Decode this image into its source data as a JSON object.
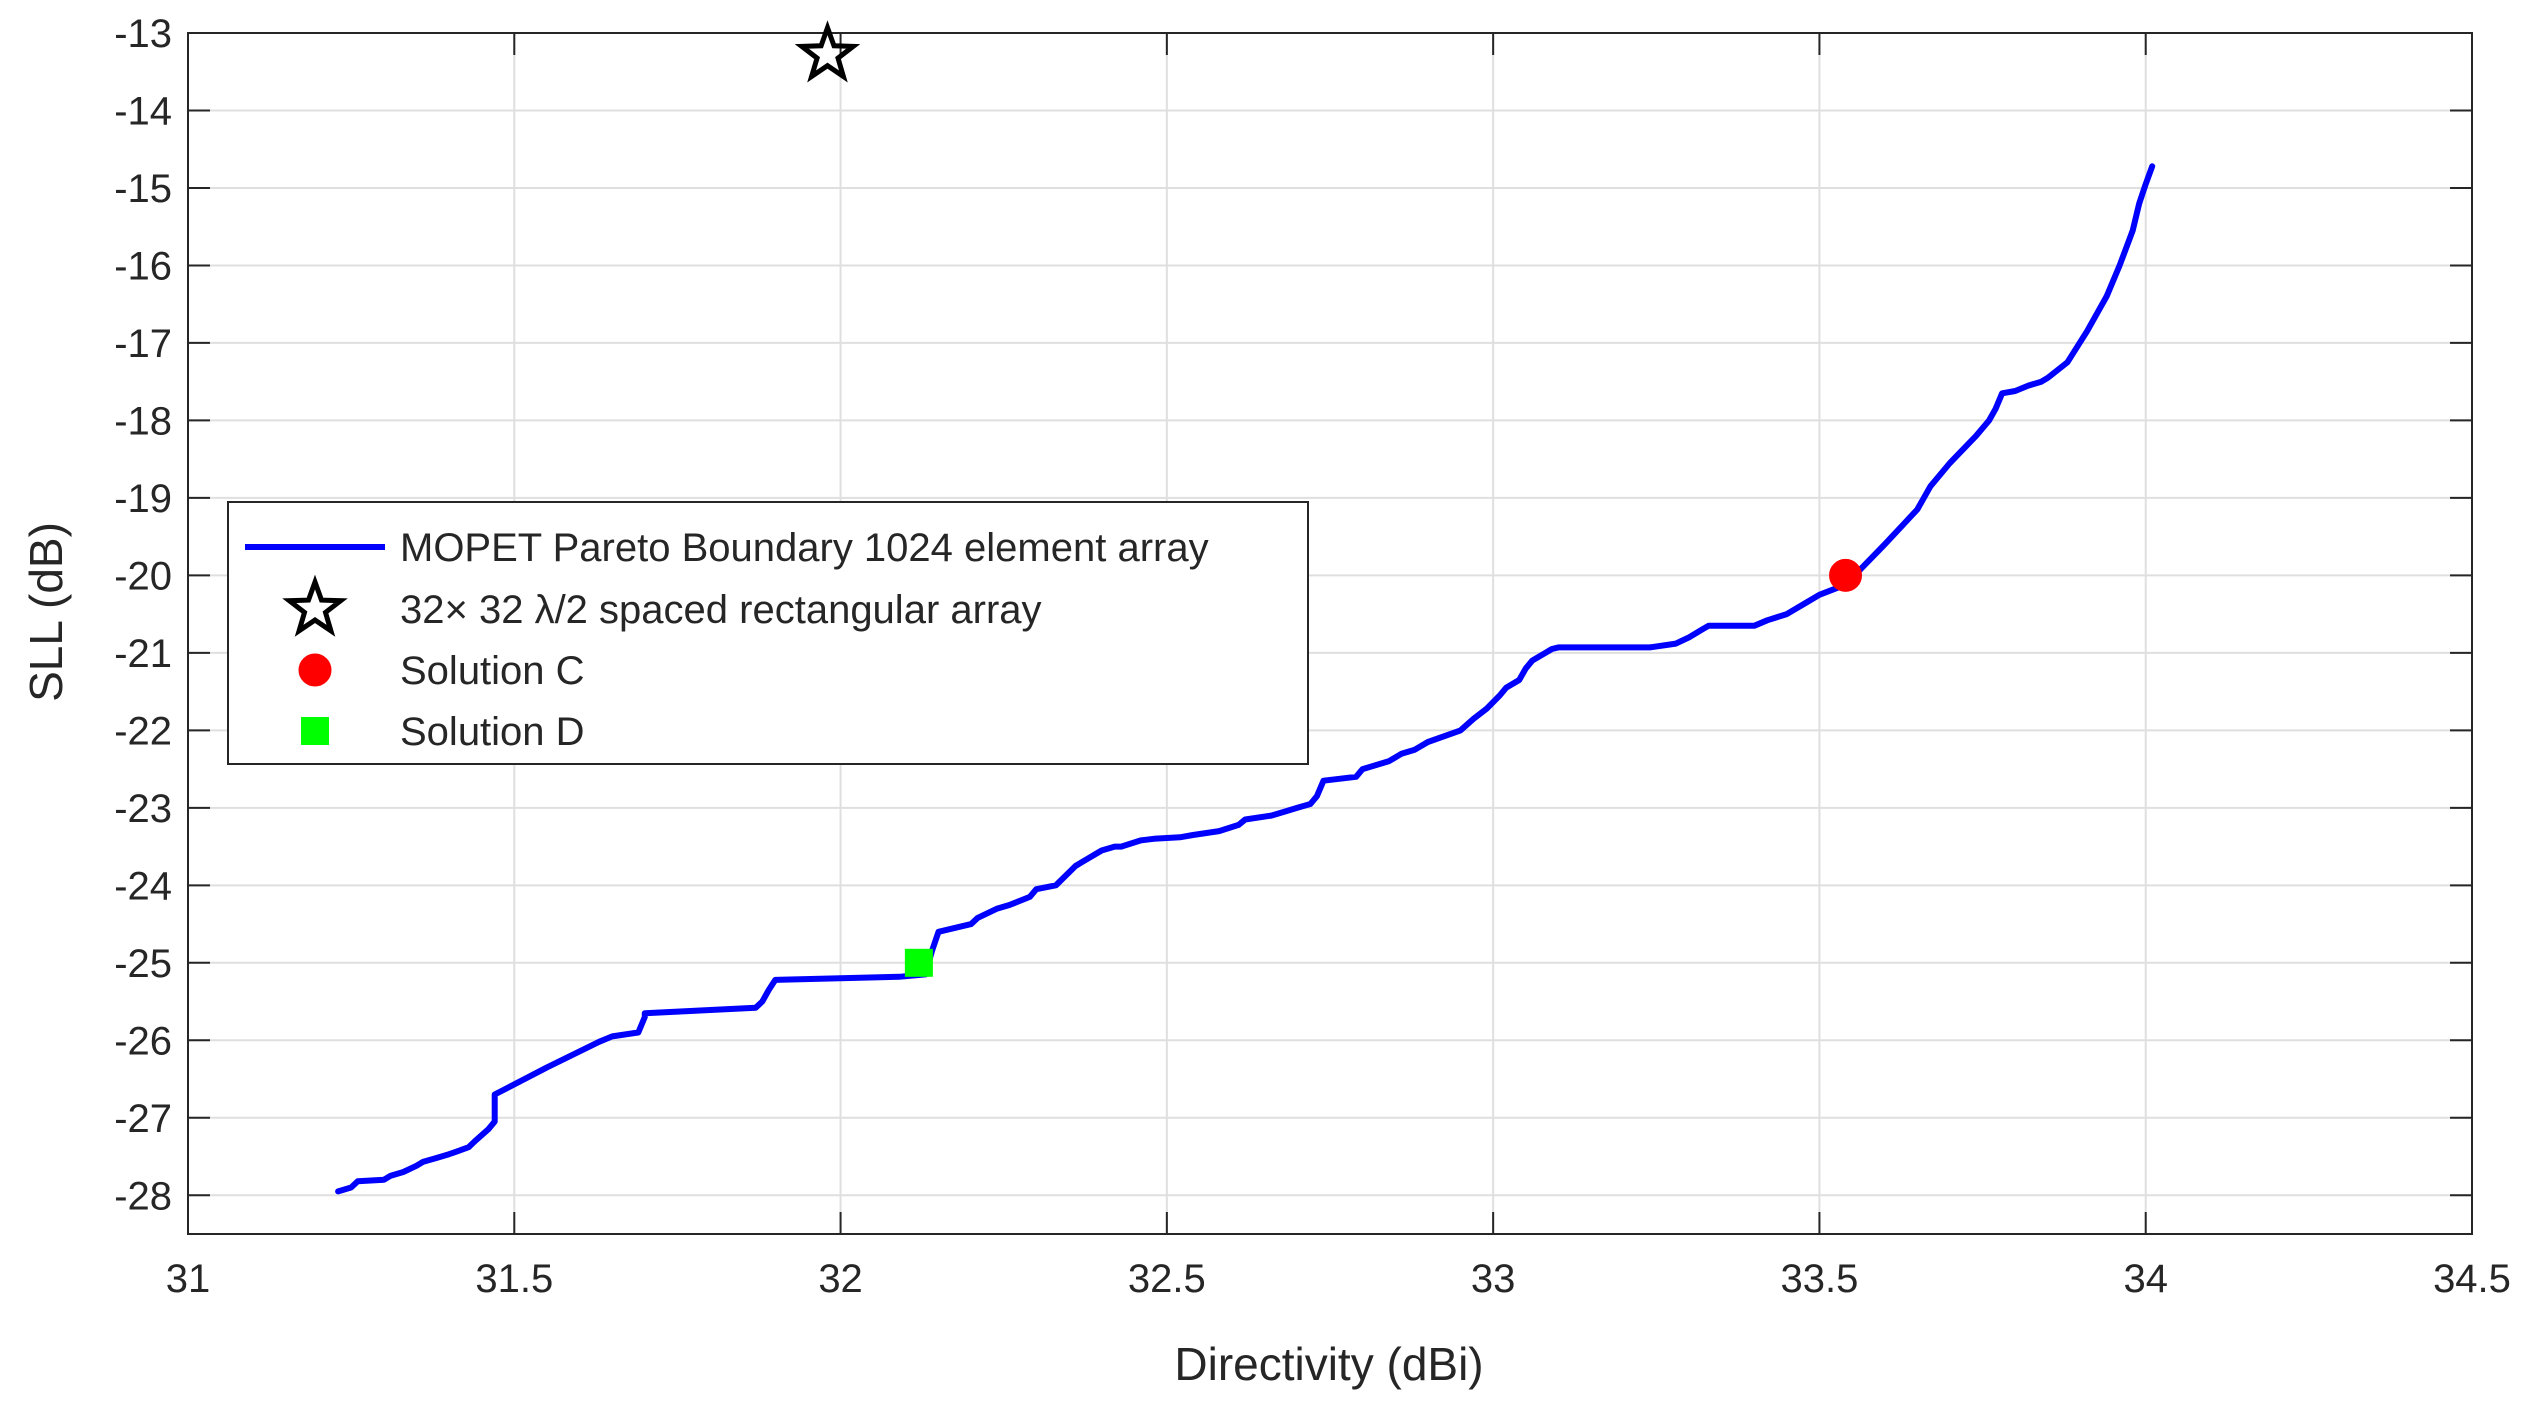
{
  "chart_data": {
    "type": "line",
    "title": "",
    "xlabel": "Directivity (dBi)",
    "ylabel": "SLL (dB)",
    "xlim": [
      31,
      34.5
    ],
    "ylim": [
      -28.5,
      -13
    ],
    "xticks": [
      31,
      31.5,
      32,
      32.5,
      33,
      33.5,
      34,
      34.5
    ],
    "xtick_labels": [
      "31",
      "31.5",
      "32",
      "32.5",
      "33",
      "33.5",
      "34",
      "34.5"
    ],
    "yticks": [
      -13,
      -14,
      -15,
      -16,
      -17,
      -18,
      -19,
      -20,
      -21,
      -22,
      -23,
      -24,
      -25,
      -26,
      -27,
      -28
    ],
    "ytick_labels": [
      "-13",
      "-14",
      "-15",
      "-16",
      "-17",
      "-18",
      "-19",
      "-20",
      "-21",
      "-22",
      "-23",
      "-24",
      "-25",
      "-26",
      "-27",
      "-28"
    ],
    "grid": true,
    "legend_position": "left-middle",
    "series": [
      {
        "name": "MOPET Pareto Boundary 1024 element array",
        "kind": "line",
        "color": "#0000ff",
        "x": [
          31.23,
          31.25,
          31.26,
          31.3,
          31.31,
          31.33,
          31.35,
          31.36,
          31.38,
          31.4,
          31.41,
          31.43,
          31.44,
          31.46,
          31.47,
          31.47,
          31.55,
          31.63,
          31.65,
          31.69,
          31.7,
          31.7,
          31.87,
          31.88,
          31.89,
          31.9,
          32.09,
          32.13,
          32.14,
          32.15,
          32.2,
          32.21,
          32.24,
          32.26,
          32.29,
          32.3,
          32.33,
          32.36,
          32.37,
          32.4,
          32.42,
          32.43,
          32.46,
          32.48,
          32.52,
          32.54,
          32.58,
          32.61,
          32.62,
          32.66,
          32.68,
          32.7,
          32.72,
          32.73,
          32.74,
          32.79,
          32.8,
          32.84,
          32.86,
          32.88,
          32.9,
          32.95,
          32.97,
          32.99,
          33.01,
          33.02,
          33.04,
          33.05,
          33.06,
          33.08,
          33.09,
          33.1,
          33.16,
          33.24,
          33.28,
          33.3,
          33.32,
          33.33,
          33.4,
          33.42,
          33.45,
          33.48,
          33.5,
          33.54,
          33.6,
          33.65,
          33.67,
          33.7,
          33.74,
          33.76,
          33.77,
          33.78,
          33.8,
          33.82,
          33.84,
          33.85,
          33.88,
          33.91,
          33.94,
          33.96,
          33.98,
          33.99,
          34.0,
          34.01
        ],
        "y": [
          -27.95,
          -27.9,
          -27.82,
          -27.8,
          -27.75,
          -27.7,
          -27.62,
          -27.57,
          -27.52,
          -27.47,
          -27.44,
          -27.38,
          -27.3,
          -27.15,
          -27.05,
          -26.7,
          -26.35,
          -26.02,
          -25.95,
          -25.9,
          -25.7,
          -25.65,
          -25.58,
          -25.5,
          -25.35,
          -25.22,
          -25.18,
          -25.15,
          -24.85,
          -24.6,
          -24.5,
          -24.42,
          -24.3,
          -24.25,
          -24.15,
          -24.05,
          -24.0,
          -23.75,
          -23.7,
          -23.55,
          -23.5,
          -23.5,
          -23.42,
          -23.4,
          -23.38,
          -23.35,
          -23.3,
          -23.22,
          -23.15,
          -23.1,
          -23.05,
          -23.0,
          -22.95,
          -22.85,
          -22.65,
          -22.6,
          -22.5,
          -22.4,
          -22.3,
          -22.25,
          -22.15,
          -22.0,
          -21.85,
          -21.72,
          -21.55,
          -21.45,
          -21.35,
          -21.2,
          -21.1,
          -21.0,
          -20.95,
          -20.93,
          -20.93,
          -20.93,
          -20.88,
          -20.8,
          -20.7,
          -20.65,
          -20.65,
          -20.58,
          -20.5,
          -20.35,
          -20.25,
          -20.12,
          -19.6,
          -19.15,
          -18.85,
          -18.55,
          -18.2,
          -18.0,
          -17.85,
          -17.65,
          -17.62,
          -17.55,
          -17.5,
          -17.45,
          -17.25,
          -16.85,
          -16.4,
          -16.0,
          -15.55,
          -15.2,
          -14.95,
          -14.72
        ]
      },
      {
        "name": "32× 32 λ/2 spaced rectangular array",
        "kind": "marker",
        "marker": "pentagram",
        "color": "#000000",
        "x": [
          31.98
        ],
        "y": [
          -13.28
        ]
      },
      {
        "name": "Solution C",
        "kind": "marker",
        "marker": "circle",
        "color": "#ff0000",
        "x": [
          33.54
        ],
        "y": [
          -20.0
        ]
      },
      {
        "name": "Solution D",
        "kind": "marker",
        "marker": "square",
        "color": "#00ff00",
        "x": [
          32.12
        ],
        "y": [
          -25.0
        ]
      }
    ]
  }
}
